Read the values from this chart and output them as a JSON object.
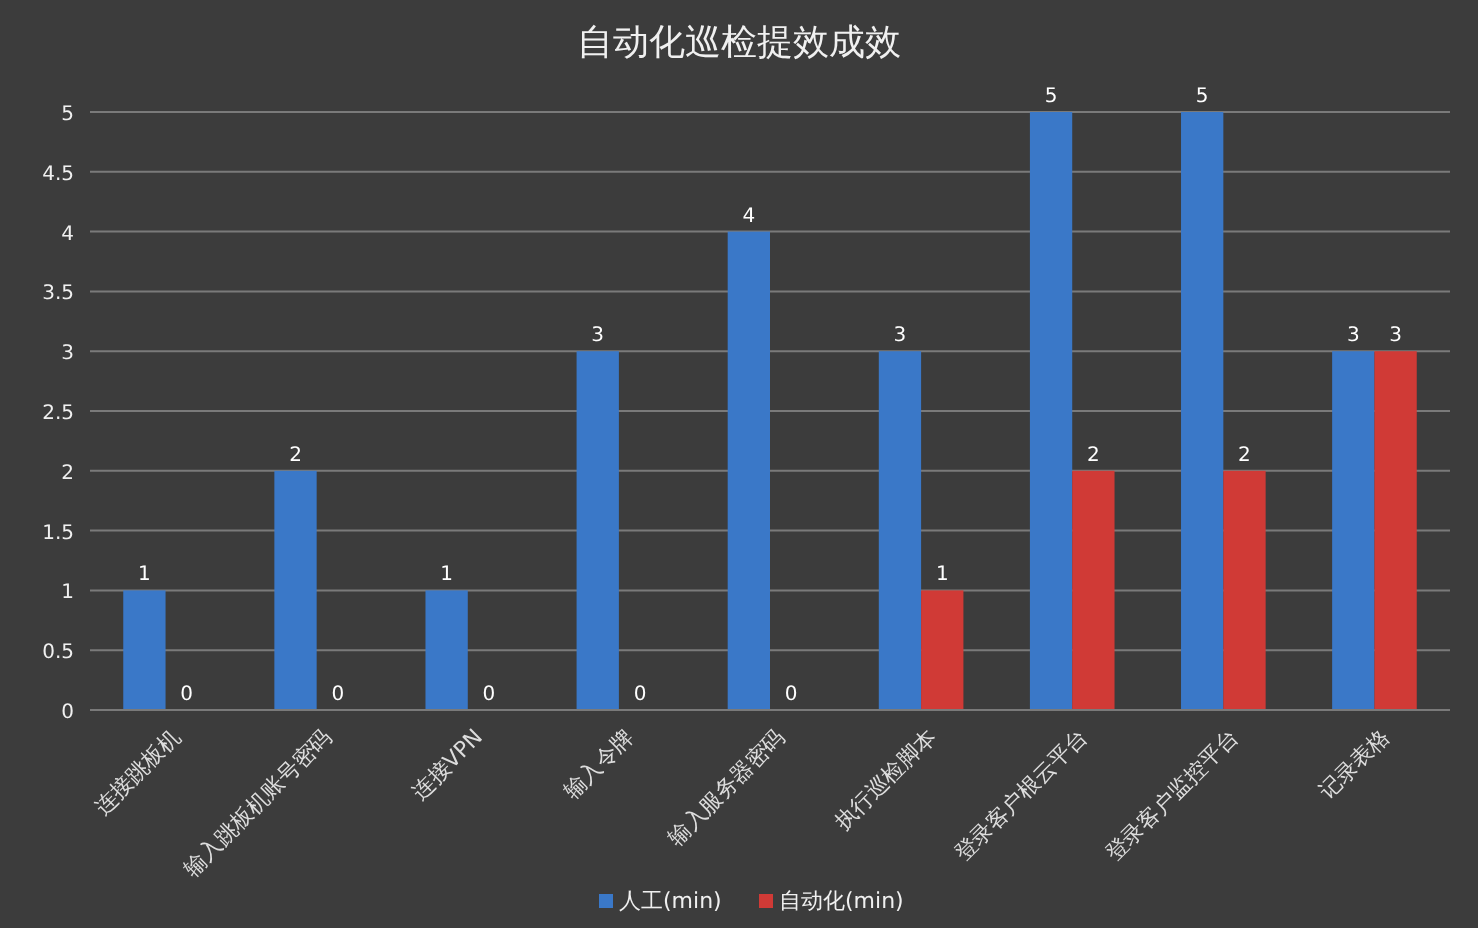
{
  "chart_data": {
    "type": "bar",
    "title": "自动化巡检提效成效",
    "categories": [
      "连接跳板机",
      "输入跳板机账号密码",
      "连接VPN",
      "输入令牌",
      "输入服务器密码",
      "执行巡检脚本",
      "登录客户根云平台",
      "登录客户监控平台",
      "记录表格"
    ],
    "series": [
      {
        "name": "人工(min)",
        "color": "#3a78c8",
        "values": [
          1,
          2,
          1,
          3,
          4,
          3,
          5,
          5,
          3
        ]
      },
      {
        "name": "自动化(min)",
        "color": "#d03a36",
        "values": [
          0,
          0,
          0,
          0,
          0,
          1,
          2,
          2,
          3
        ]
      }
    ],
    "ylim": [
      0,
      5
    ],
    "yticks": [
      0,
      0.5,
      1,
      1.5,
      2,
      2.5,
      3,
      3.5,
      4,
      4.5,
      5
    ],
    "grid": "y",
    "legend": "bottom",
    "data_labels": true
  }
}
